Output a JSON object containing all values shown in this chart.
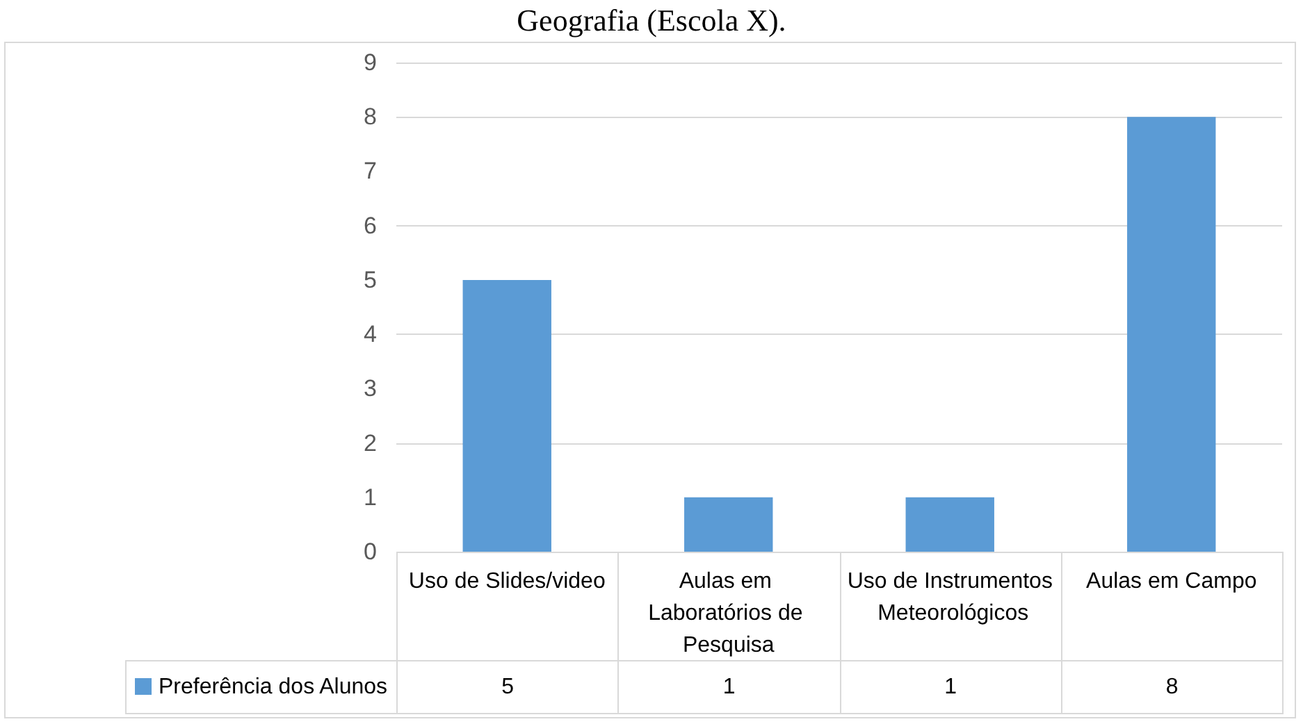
{
  "chart_data": {
    "type": "bar",
    "title": "Geografia (Escola X).",
    "categories": [
      "Uso de Slides/video",
      "Aulas em Laboratórios de Pesquisa",
      "Uso de Instrumentos Meteorológicos",
      "Aulas em Campo"
    ],
    "series": [
      {
        "name": "Preferência dos Alunos",
        "color": "#5b9bd5",
        "values": [
          5,
          1,
          1,
          8
        ]
      }
    ],
    "ylim": [
      0,
      9
    ],
    "yticks": [
      0,
      1,
      2,
      3,
      4,
      5,
      6,
      7,
      8,
      9
    ],
    "grid": "y",
    "legend": "bottom",
    "data_labels": true
  }
}
